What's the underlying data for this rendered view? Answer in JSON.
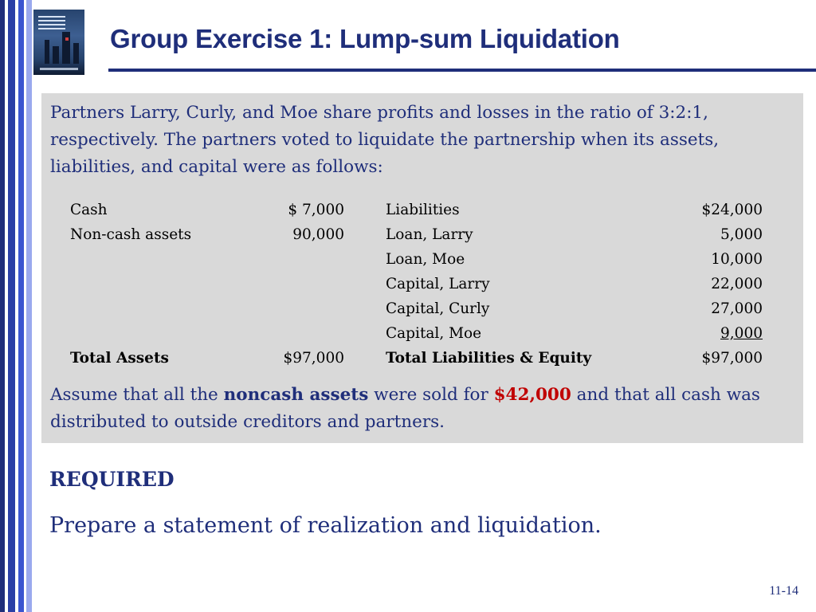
{
  "slide": {
    "title": "Group Exercise 1: Lump-sum Liquidation",
    "intro": "Partners Larry, Curly, and Moe share profits and losses in the ratio of 3:2:1, respectively.  The partners voted to liquidate the partnership when its assets, liabilities, and capital were as follows:",
    "balance_sheet": {
      "rows": [
        {
          "asset_label": "Cash",
          "asset_value": "$  7,000",
          "liability_label": "Liabilities",
          "liability_value": "$24,000"
        },
        {
          "asset_label": "Non-cash assets",
          "asset_value": "90,000",
          "liability_label": "Loan, Larry",
          "liability_value": "5,000"
        },
        {
          "asset_label": "",
          "asset_value": "",
          "liability_label": "Loan, Moe",
          "liability_value": "10,000"
        },
        {
          "asset_label": "",
          "asset_value": "",
          "liability_label": "Capital, Larry",
          "liability_value": "22,000"
        },
        {
          "asset_label": "",
          "asset_value": "",
          "liability_label": "Capital, Curly",
          "liability_value": "27,000"
        },
        {
          "asset_label": "",
          "asset_value": "",
          "liability_label": "Capital, Moe",
          "liability_value": "9,000"
        }
      ],
      "total": {
        "asset_label": "Total Assets",
        "asset_value": "$97,000",
        "liability_label": "Total Liabilities & Equity",
        "liability_value": "$97,000"
      }
    },
    "assume": {
      "part1": "Assume that all the ",
      "bold1": "noncash assets",
      "part2": " were sold for ",
      "amount": "$42,000",
      "part3": " and that all cash was distributed to outside creditors and partners."
    },
    "required_heading": "REQUIRED",
    "required_text": "Prepare a statement of realization and liquidation.",
    "page_number": "11-14"
  },
  "colors": {
    "title": "#1f2e7a",
    "box_bg": "#d9d9d9",
    "highlight": "#c00000"
  },
  "icons": {
    "cover": "textbook-cover-thumbnail"
  }
}
